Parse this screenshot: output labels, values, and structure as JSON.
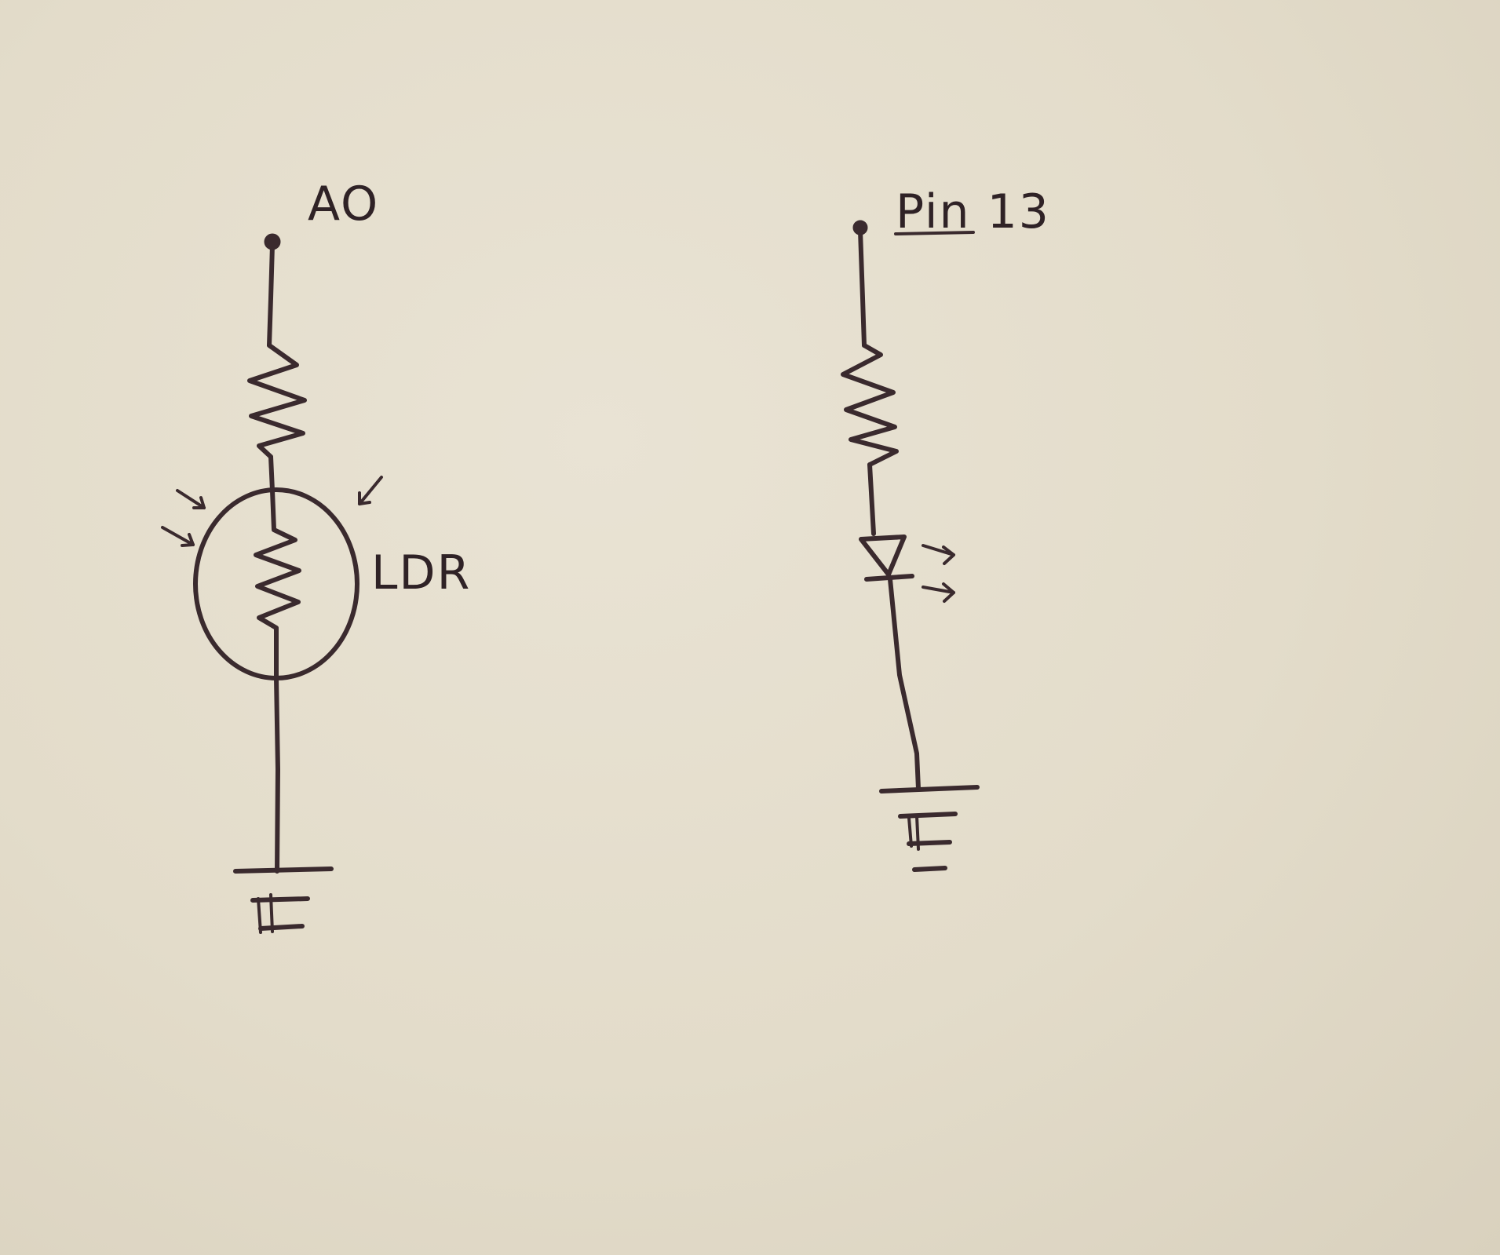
{
  "labels": {
    "input_pin": "AO",
    "output_pin": "Pin 13",
    "sensor": "LDR"
  },
  "colors": {
    "paper": "#e4ddcc",
    "ink": "#3a2a2e"
  }
}
